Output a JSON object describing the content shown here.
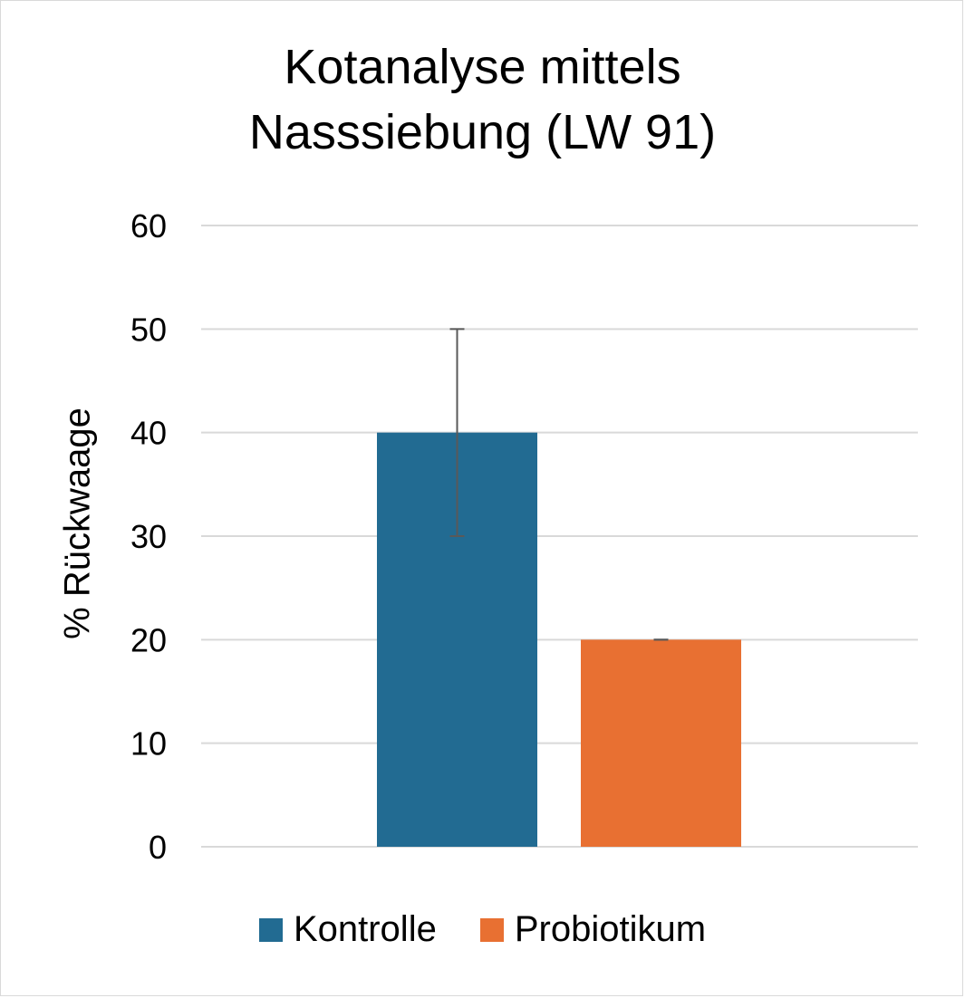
{
  "chart_data": {
    "type": "bar",
    "title_lines": [
      "Kotanalyse mittels",
      "Nasssiebung (LW 91)"
    ],
    "title": "Kotanalyse mittels Nasssiebung (LW 91)",
    "xlabel": "",
    "ylabel": "% Rückwaage",
    "ylim": [
      0,
      60
    ],
    "yticks": [
      0,
      10,
      20,
      30,
      40,
      50,
      60
    ],
    "grid": true,
    "legend_position": "bottom",
    "series": [
      {
        "name": "Kontrolle",
        "value": 40,
        "error": 10,
        "color": "#226b92"
      },
      {
        "name": "Probiotikum",
        "value": 20,
        "error": 0,
        "color": "#e87032"
      }
    ]
  }
}
